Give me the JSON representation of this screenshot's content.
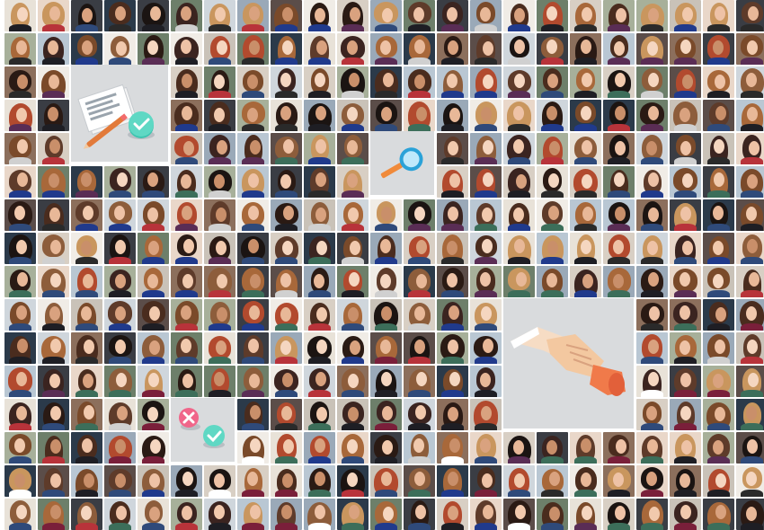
{
  "grid": {
    "columns": 23,
    "rows": 16
  },
  "palette": {
    "backgrounds": [
      "#cfd6dc",
      "#e8e2d8",
      "#3a3d44",
      "#6d7f6a",
      "#b9c7d3",
      "#f0ece6",
      "#8c6f5c",
      "#2b3a4a",
      "#d8cfc4",
      "#a7b09a",
      "#e9d7c9",
      "#9aa9b8",
      "#5b4d49",
      "#c9c2b8"
    ],
    "hair": [
      "#2a1a14",
      "#4a2c1e",
      "#7a4a2a",
      "#a8683a",
      "#c9965e",
      "#1b1412",
      "#5e3b2a",
      "#b24a2e",
      "#3b2420",
      "#8d5d3b"
    ],
    "skin": [
      "#f1c9ad",
      "#e8b898",
      "#d9a27f",
      "#f5d6c0",
      "#c98f6a",
      "#eec2a6"
    ],
    "clothes": [
      "#1e1e24",
      "#2f4a7a",
      "#b8333a",
      "#ffffff",
      "#5a2d55",
      "#3c6e5a",
      "#d0d0d0",
      "#203a8c",
      "#7a1f3a",
      "#2a2a2a"
    ],
    "feature_bg": "#d9dbdd"
  },
  "features": [
    {
      "name": "document-check-illustration",
      "icon": "document-check-icon"
    },
    {
      "name": "magnifier-illustration",
      "icon": "magnifier-icon"
    },
    {
      "name": "handshake-illustration",
      "icon": "handshake-icon"
    },
    {
      "name": "reject-approve-illustration",
      "icon": "reject-approve-icon"
    }
  ]
}
